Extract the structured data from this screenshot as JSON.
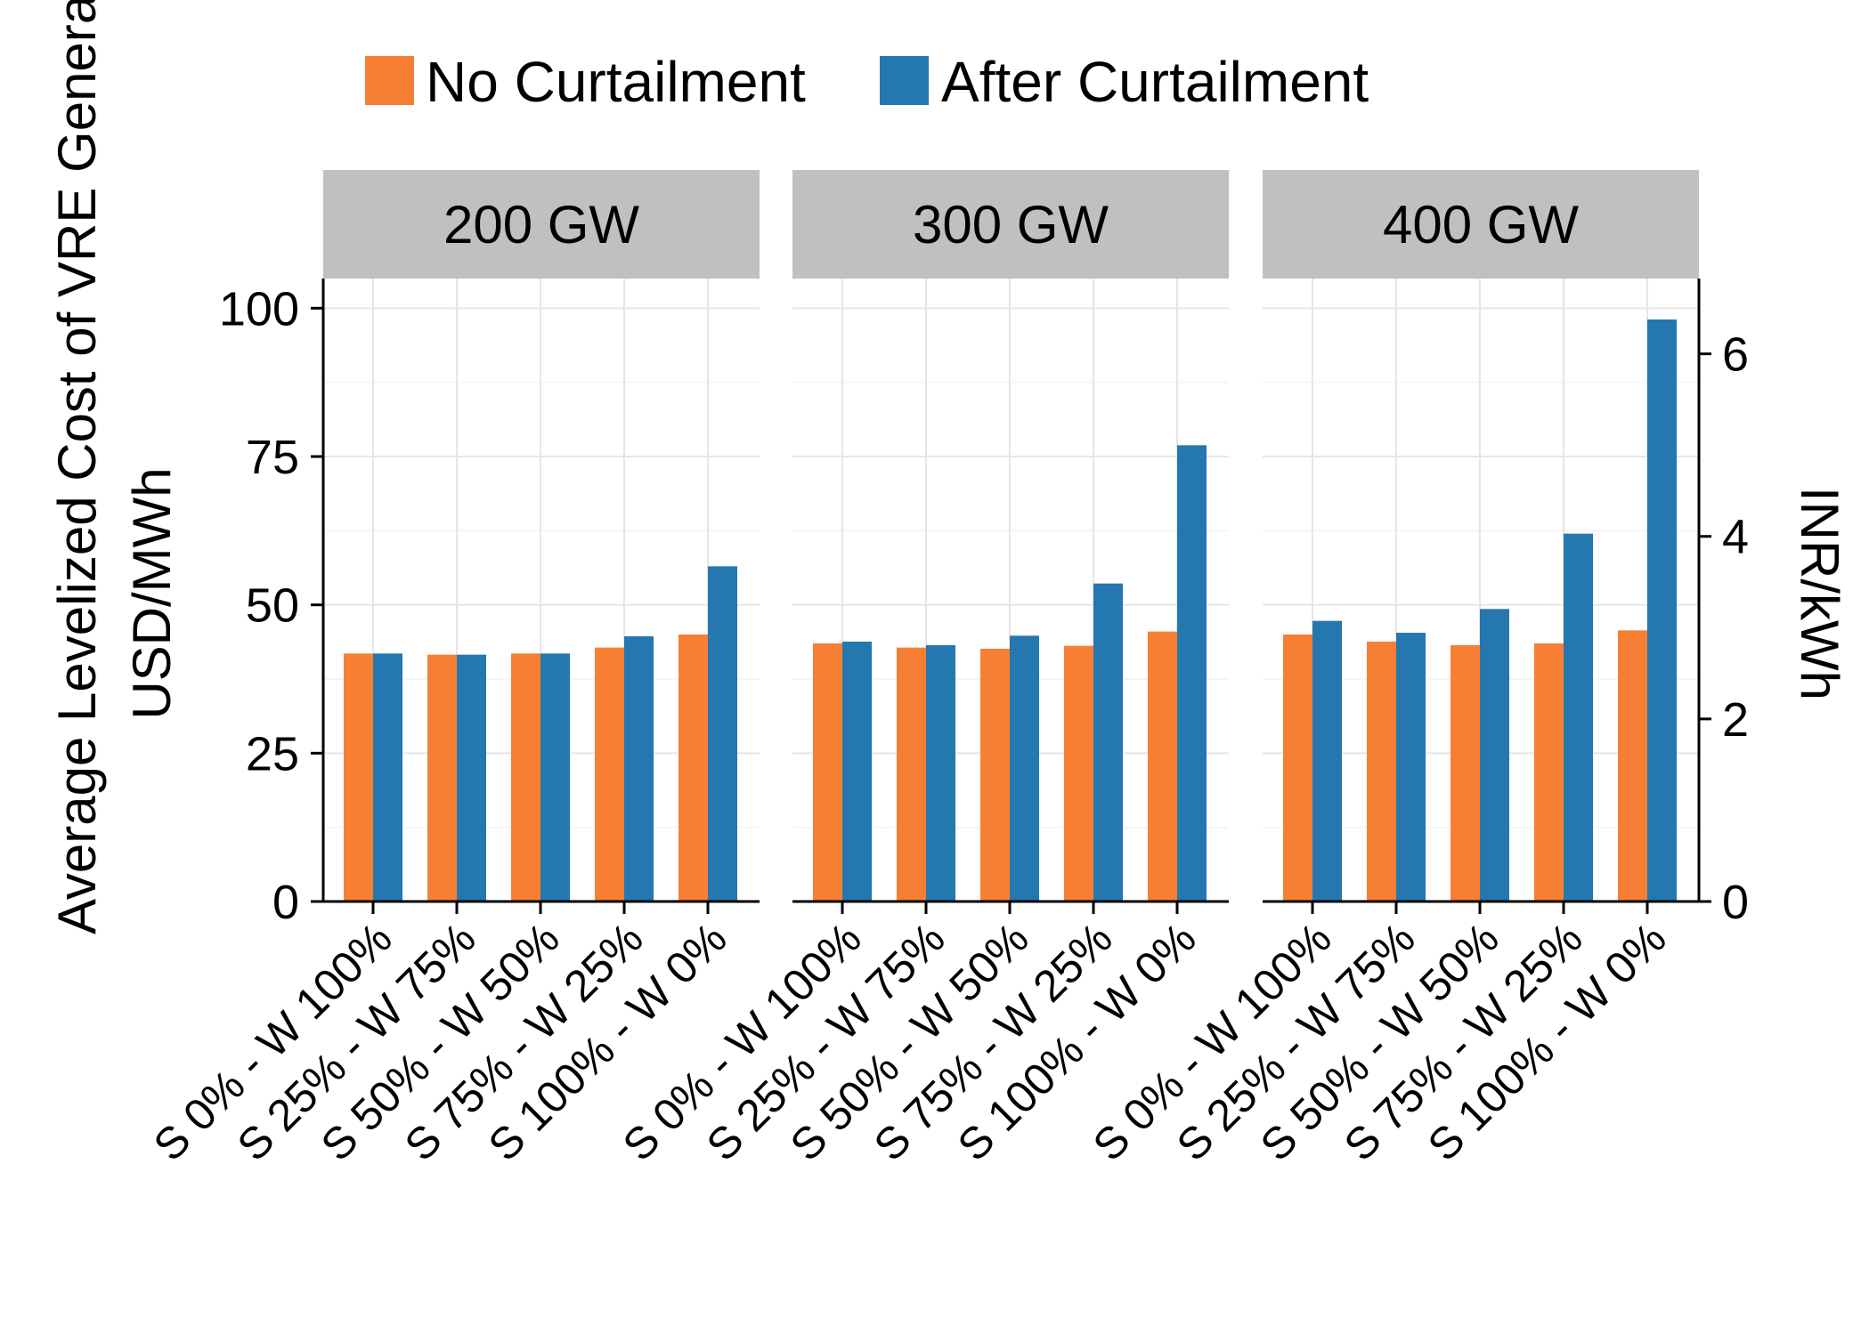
{
  "chart_data": {
    "type": "bar",
    "ylabel_lines": [
      "Average Levelized Cost of VRE Generation",
      "USD/MWh"
    ],
    "ylabel_secondary": "INR/kWh",
    "ylim": [
      0,
      105
    ],
    "yticks": [
      0,
      25,
      50,
      75,
      100
    ],
    "secondary_yticks": [
      0,
      2,
      4,
      6
    ],
    "secondary_per_primary": 0.065,
    "grid": true,
    "legend_position": "top",
    "categories": [
      "S 0% - W 100%",
      "S 25% - W 75%",
      "S 50% - W 50%",
      "S 75% - W 25%",
      "S 100% - W 0%"
    ],
    "series": [
      {
        "name": "No Curtailment",
        "color": "#F77F33"
      },
      {
        "name": "After Curtailment",
        "color": "#2577B0"
      }
    ],
    "panels": [
      {
        "title": "200 GW",
        "values": [
          [
            41.8,
            41.6,
            41.8,
            42.8,
            45.0
          ],
          [
            41.8,
            41.6,
            41.8,
            44.7,
            56.5
          ]
        ]
      },
      {
        "title": "300 GW",
        "values": [
          [
            43.5,
            42.8,
            42.6,
            43.1,
            45.5
          ],
          [
            43.8,
            43.2,
            44.8,
            53.6,
            76.9
          ]
        ]
      },
      {
        "title": "400 GW",
        "values": [
          [
            45.0,
            43.8,
            43.2,
            43.5,
            45.7
          ],
          [
            47.3,
            45.3,
            49.3,
            62.0,
            98.1
          ]
        ]
      }
    ]
  }
}
